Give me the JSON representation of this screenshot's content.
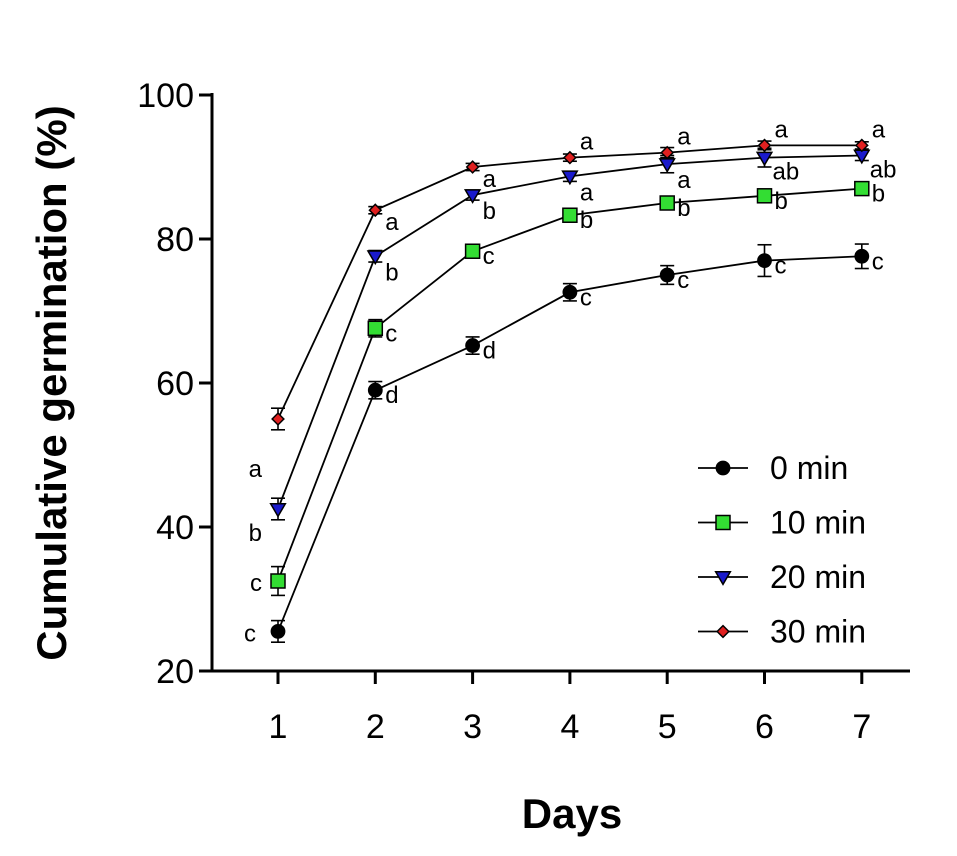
{
  "chart_data": {
    "type": "line",
    "title": "",
    "xlabel": "Days",
    "ylabel": "Cumulative germination (%)",
    "x": [
      1,
      2,
      3,
      4,
      5,
      6,
      7
    ],
    "xticks": [
      "1",
      "2",
      "3",
      "4",
      "5",
      "6",
      "7"
    ],
    "ylim": [
      20,
      100
    ],
    "yticks": [
      20,
      40,
      60,
      80,
      100
    ],
    "grid": false,
    "legend_position": "bottom-right",
    "series": [
      {
        "name": "0 min",
        "marker": "circle",
        "color": "#000000",
        "values": [
          25.5,
          59,
          65.2,
          72.6,
          75,
          77,
          77.6
        ],
        "errors": [
          1.5,
          1.2,
          1.2,
          1.2,
          1.3,
          2.2,
          1.7
        ],
        "letters": [
          "c",
          "d",
          "d",
          "c",
          "c",
          "c",
          "c"
        ]
      },
      {
        "name": "10 min",
        "marker": "square",
        "color": "#33dd33",
        "values": [
          32.5,
          67.6,
          78.3,
          83.3,
          85,
          86,
          87
        ],
        "errors": [
          2,
          1.2,
          0.8,
          0.6,
          0.7,
          0.7,
          0.8
        ],
        "letters": [
          "c",
          "c",
          "c",
          "b",
          "b",
          "b",
          "b"
        ]
      },
      {
        "name": "20 min",
        "marker": "triangle-down",
        "color": "#1a1acc",
        "values": [
          42.5,
          77.6,
          86.1,
          88.7,
          90.4,
          91.3,
          91.6
        ],
        "errors": [
          1.5,
          0.8,
          0.7,
          0.7,
          1.2,
          1.3,
          0.7
        ],
        "letters": [
          "b",
          "b",
          "b",
          "a",
          "a",
          "ab",
          "ab"
        ]
      },
      {
        "name": "30 min",
        "marker": "diamond",
        "color": "#e02020",
        "values": [
          55,
          84,
          90,
          91.3,
          92,
          93,
          93
        ],
        "errors": [
          1.5,
          0.5,
          0.5,
          0.5,
          0.7,
          0.6,
          0.5
        ],
        "letters": [
          "a",
          "a",
          "a",
          "a",
          "a",
          "a",
          "a"
        ]
      }
    ]
  }
}
